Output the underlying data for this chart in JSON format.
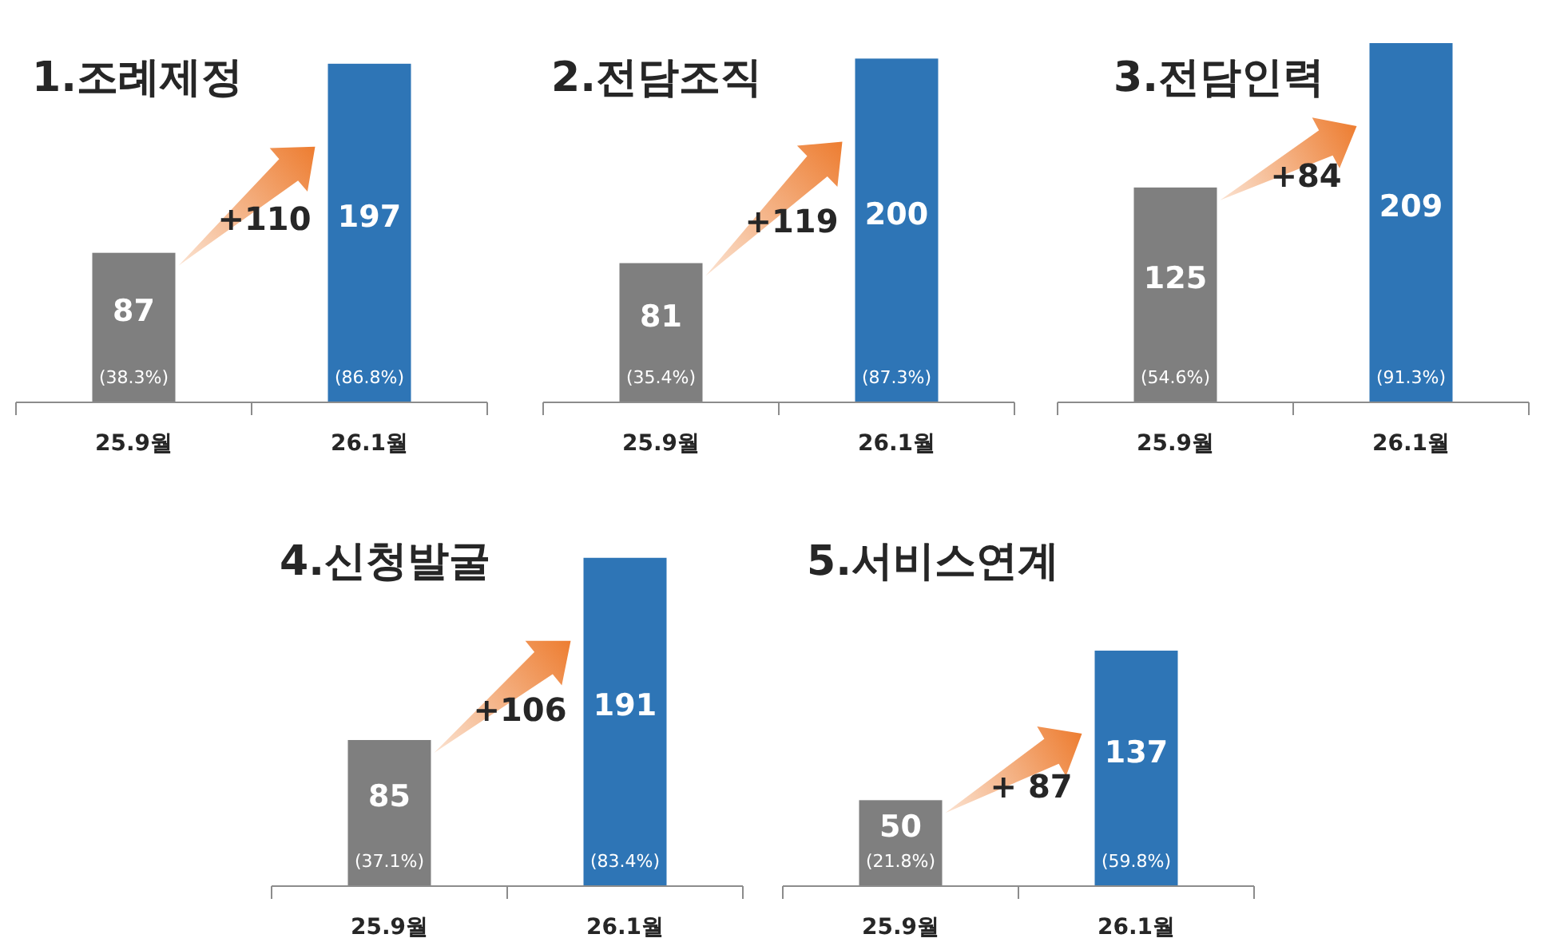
{
  "chart_data": [
    {
      "type": "bar",
      "title": "1.조례제정",
      "categories": [
        "25.9월",
        "26.1월"
      ],
      "values": [
        87,
        197
      ],
      "colors": [
        "#7f7f7f",
        "#2e75b6"
      ],
      "data_labels": true,
      "annotations": [
        "+110",
        "(38.3%)",
        "(86.8%)"
      ]
    },
    {
      "type": "bar",
      "title": "2.전담조직",
      "categories": [
        "25.9월",
        "26.1월"
      ],
      "values": [
        81,
        200
      ],
      "colors": [
        "#7f7f7f",
        "#2e75b6"
      ],
      "data_labels": true,
      "annotations": [
        "+119",
        "(35.4%)",
        "(87.3%)"
      ]
    },
    {
      "type": "bar",
      "title": "3.전담인력",
      "categories": [
        "25.9월",
        "26.1월"
      ],
      "values": [
        125,
        209
      ],
      "colors": [
        "#7f7f7f",
        "#2e75b6"
      ],
      "data_labels": true,
      "annotations": [
        "+84",
        "(54.6%)",
        "(91.3%)"
      ]
    },
    {
      "type": "bar",
      "title": "4.신청발굴",
      "categories": [
        "25.9월",
        "26.1월"
      ],
      "values": [
        85,
        191
      ],
      "colors": [
        "#7f7f7f",
        "#2e75b6"
      ],
      "data_labels": true,
      "annotations": [
        "+106",
        "(37.1%)",
        "(83.4%)"
      ]
    },
    {
      "type": "bar",
      "title": "5.서비스연계",
      "categories": [
        "25.9월",
        "26.1월"
      ],
      "values": [
        50,
        137
      ],
      "colors": [
        "#7f7f7f",
        "#2e75b6"
      ],
      "data_labels": true,
      "annotations": [
        "+ 87",
        "(21.8%)",
        "(59.8%)"
      ]
    }
  ]
}
